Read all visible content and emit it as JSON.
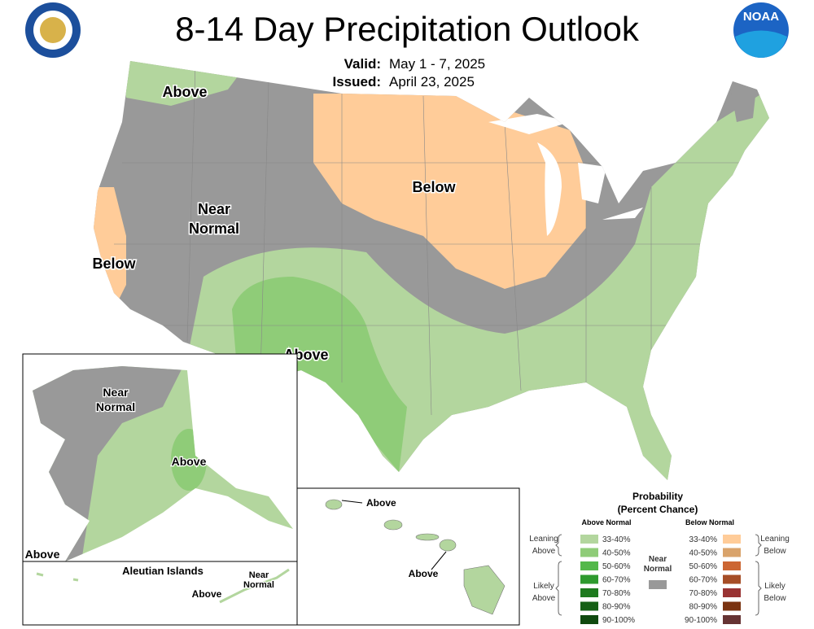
{
  "logo_text": "NOAA",
  "title": "8-14 Day Precipitation Outlook",
  "valid": {
    "label": "Valid:",
    "value": "May 1 - 7, 2025"
  },
  "issued": {
    "label": "Issued:",
    "value": "April 23, 2025"
  },
  "conus_labels": [
    [
      "Above"
    ],
    [
      "Near",
      "Normal"
    ],
    [
      "Below"
    ],
    [
      "Below"
    ],
    [
      "Above"
    ]
  ],
  "alaska_labels": [
    [
      "Near",
      "Normal"
    ],
    [
      "Above"
    ],
    [
      "Above"
    ]
  ],
  "aleutian": {
    "title": "Aleutian Islands",
    "labels": [
      [
        "Above"
      ],
      [
        "Near",
        "Normal"
      ]
    ]
  },
  "hawaii_labels": [
    [
      "Above"
    ],
    [
      "Above"
    ]
  ],
  "legend": {
    "title": "Probability",
    "subtitle": "(Percent Chance)",
    "above_header": "Above Normal",
    "below_header": "Below Normal",
    "ranges_above": [
      "33-40%",
      "40-50%",
      "50-60%",
      "60-70%",
      "70-80%",
      "80-90%",
      "90-100%"
    ],
    "ranges_below": [
      "33-40%",
      "40-50%",
      "50-60%",
      "60-70%",
      "70-80%",
      "80-90%",
      "90-100%"
    ],
    "groups": [
      [
        "Leaning",
        "Above"
      ],
      [
        "Likely",
        "Above"
      ],
      [
        "Leaning",
        "Below"
      ],
      [
        "Likely",
        "Below"
      ]
    ],
    "near_normal": [
      "Near",
      "Normal"
    ]
  }
}
